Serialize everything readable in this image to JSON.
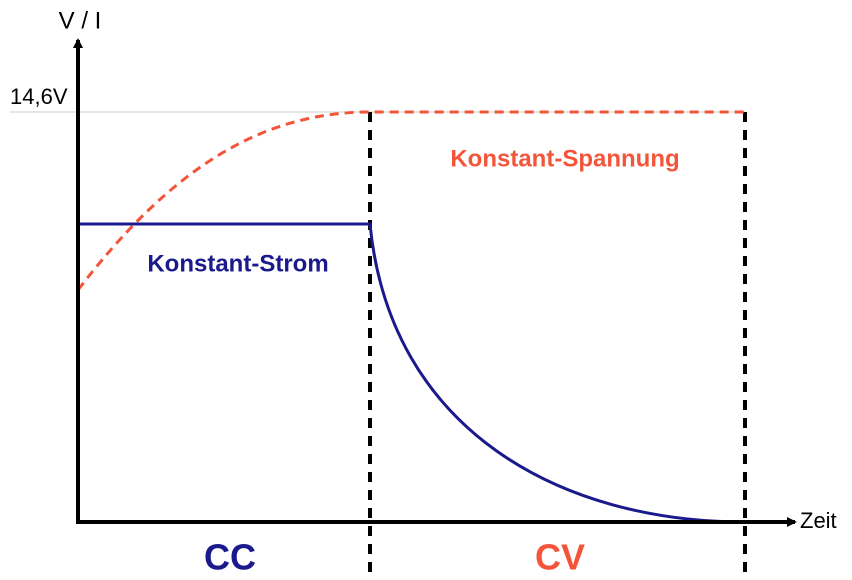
{
  "axis": {
    "y_label": "V / I",
    "y_level": "14,6V",
    "x_label": "Zeit"
  },
  "curves": {
    "voltage": "Konstant-Spannung",
    "current": "Konstant-Strom"
  },
  "phases": [
    "CC",
    "CV"
  ]
}
